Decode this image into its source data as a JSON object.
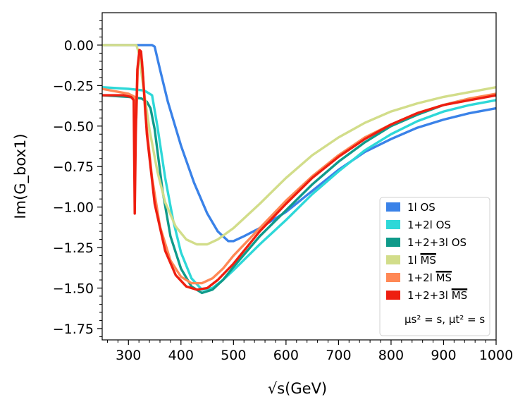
{
  "chart_data": {
    "type": "line",
    "xlabel": "√s(GeV)",
    "ylabel": "Im(G_box1)",
    "xlim": [
      250,
      1000
    ],
    "ylim": [
      -1.82,
      0.2
    ],
    "grid": false,
    "legend_position": "bottom-right",
    "x_ticks": [
      "300",
      "400",
      "500",
      "600",
      "700",
      "800",
      "900",
      "1000"
    ],
    "y_ticks": [
      "0.00",
      "−0.25",
      "−0.50",
      "−0.75",
      "−1.00",
      "−1.25",
      "−1.50",
      "−1.75"
    ],
    "legend_note": "μs² = s, μt² = s",
    "series": [
      {
        "name": "1l OS",
        "color": "#3a82e8",
        "points": [
          [
            250,
            0
          ],
          [
            300,
            0
          ],
          [
            345,
            0
          ],
          [
            350,
            -0.01
          ],
          [
            360,
            -0.15
          ],
          [
            375,
            -0.35
          ],
          [
            400,
            -0.62
          ],
          [
            425,
            -0.85
          ],
          [
            450,
            -1.04
          ],
          [
            470,
            -1.15
          ],
          [
            490,
            -1.21
          ],
          [
            500,
            -1.21
          ],
          [
            520,
            -1.18
          ],
          [
            550,
            -1.13
          ],
          [
            600,
            -1.03
          ],
          [
            650,
            -0.9
          ],
          [
            700,
            -0.77
          ],
          [
            750,
            -0.66
          ],
          [
            800,
            -0.58
          ],
          [
            850,
            -0.51
          ],
          [
            900,
            -0.46
          ],
          [
            950,
            -0.42
          ],
          [
            1000,
            -0.39
          ]
        ]
      },
      {
        "name": "1+2l OS",
        "color": "#2ed8d8",
        "points": [
          [
            250,
            -0.26
          ],
          [
            300,
            -0.27
          ],
          [
            330,
            -0.28
          ],
          [
            345,
            -0.31
          ],
          [
            355,
            -0.5
          ],
          [
            370,
            -0.82
          ],
          [
            385,
            -1.08
          ],
          [
            400,
            -1.28
          ],
          [
            420,
            -1.44
          ],
          [
            440,
            -1.51
          ],
          [
            460,
            -1.5
          ],
          [
            480,
            -1.45
          ],
          [
            500,
            -1.39
          ],
          [
            550,
            -1.23
          ],
          [
            600,
            -1.08
          ],
          [
            650,
            -0.92
          ],
          [
            700,
            -0.78
          ],
          [
            750,
            -0.65
          ],
          [
            800,
            -0.55
          ],
          [
            850,
            -0.47
          ],
          [
            900,
            -0.41
          ],
          [
            950,
            -0.37
          ],
          [
            1000,
            -0.34
          ]
        ]
      },
      {
        "name": "1+2+3l OS",
        "color": "#0f9a8a",
        "points": [
          [
            250,
            -0.31
          ],
          [
            300,
            -0.32
          ],
          [
            325,
            -0.33
          ],
          [
            335,
            -0.35
          ],
          [
            342,
            -0.39
          ],
          [
            350,
            -0.52
          ],
          [
            365,
            -0.9
          ],
          [
            380,
            -1.18
          ],
          [
            400,
            -1.38
          ],
          [
            420,
            -1.49
          ],
          [
            440,
            -1.53
          ],
          [
            460,
            -1.51
          ],
          [
            480,
            -1.45
          ],
          [
            500,
            -1.37
          ],
          [
            550,
            -1.18
          ],
          [
            600,
            -1.02
          ],
          [
            650,
            -0.86
          ],
          [
            700,
            -0.72
          ],
          [
            750,
            -0.6
          ],
          [
            800,
            -0.5
          ],
          [
            850,
            -0.43
          ],
          [
            900,
            -0.37
          ],
          [
            950,
            -0.33
          ],
          [
            1000,
            -0.31
          ]
        ]
      },
      {
        "name": "1l MS",
        "color": "#d2dd8a",
        "points": [
          [
            250,
            0
          ],
          [
            300,
            0
          ],
          [
            315,
            0
          ],
          [
            320,
            -0.05
          ],
          [
            328,
            -0.25
          ],
          [
            340,
            -0.52
          ],
          [
            355,
            -0.78
          ],
          [
            370,
            -0.97
          ],
          [
            390,
            -1.12
          ],
          [
            410,
            -1.2
          ],
          [
            430,
            -1.23
          ],
          [
            450,
            -1.23
          ],
          [
            470,
            -1.2
          ],
          [
            500,
            -1.13
          ],
          [
            550,
            -0.98
          ],
          [
            600,
            -0.82
          ],
          [
            650,
            -0.68
          ],
          [
            700,
            -0.57
          ],
          [
            750,
            -0.48
          ],
          [
            800,
            -0.41
          ],
          [
            850,
            -0.36
          ],
          [
            900,
            -0.32
          ],
          [
            950,
            -0.29
          ],
          [
            1000,
            -0.26
          ]
        ]
      },
      {
        "name": "1+2l MS",
        "color": "#ff8855",
        "points": [
          [
            250,
            -0.27
          ],
          [
            300,
            -0.3
          ],
          [
            312,
            -0.32
          ],
          [
            315,
            -0.45
          ],
          [
            318,
            -0.12
          ],
          [
            322,
            -0.04
          ],
          [
            326,
            -0.1
          ],
          [
            332,
            -0.42
          ],
          [
            345,
            -0.82
          ],
          [
            360,
            -1.12
          ],
          [
            380,
            -1.33
          ],
          [
            400,
            -1.43
          ],
          [
            420,
            -1.47
          ],
          [
            440,
            -1.47
          ],
          [
            460,
            -1.44
          ],
          [
            480,
            -1.38
          ],
          [
            500,
            -1.3
          ],
          [
            550,
            -1.13
          ],
          [
            600,
            -0.96
          ],
          [
            650,
            -0.81
          ],
          [
            700,
            -0.68
          ],
          [
            750,
            -0.57
          ],
          [
            800,
            -0.49
          ],
          [
            850,
            -0.42
          ],
          [
            900,
            -0.37
          ],
          [
            950,
            -0.33
          ],
          [
            1000,
            -0.3
          ]
        ]
      },
      {
        "name": "1+2+3l MS",
        "color": "#ee1e10",
        "points": [
          [
            250,
            -0.31
          ],
          [
            290,
            -0.31
          ],
          [
            305,
            -0.32
          ],
          [
            310,
            -0.34
          ],
          [
            312,
            -1.04
          ],
          [
            314,
            -0.55
          ],
          [
            317,
            -0.15
          ],
          [
            321,
            -0.03
          ],
          [
            324,
            -0.04
          ],
          [
            328,
            -0.2
          ],
          [
            335,
            -0.55
          ],
          [
            350,
            -0.98
          ],
          [
            370,
            -1.27
          ],
          [
            390,
            -1.42
          ],
          [
            410,
            -1.49
          ],
          [
            430,
            -1.51
          ],
          [
            450,
            -1.5
          ],
          [
            470,
            -1.45
          ],
          [
            500,
            -1.35
          ],
          [
            550,
            -1.15
          ],
          [
            600,
            -0.98
          ],
          [
            650,
            -0.82
          ],
          [
            700,
            -0.69
          ],
          [
            750,
            -0.58
          ],
          [
            800,
            -0.49
          ],
          [
            850,
            -0.42
          ],
          [
            900,
            -0.37
          ],
          [
            950,
            -0.34
          ],
          [
            1000,
            -0.31
          ]
        ]
      }
    ]
  }
}
